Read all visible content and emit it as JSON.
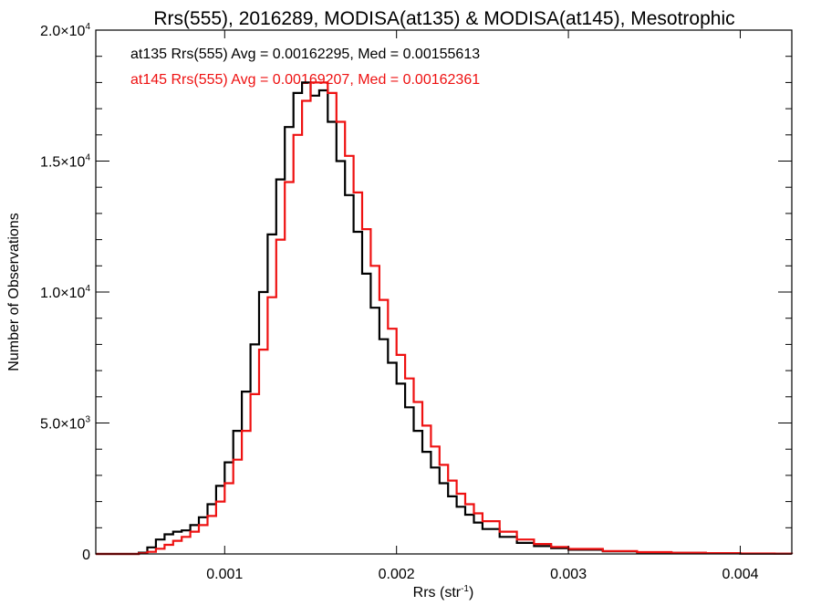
{
  "chart_data": {
    "type": "line",
    "title": "Rrs(555), 2016289, MODISA(at135) & MODISA(at145), Mesotrophic",
    "xlabel": "Rrs (str",
    "xlabel_sup": "-1",
    "xlabel_end": ")",
    "ylabel": "Number of Observations",
    "xlim": [
      0.00025,
      0.0043
    ],
    "ylim": [
      0,
      20000
    ],
    "x_ticks": [
      {
        "value": 0.001,
        "label": "0.001"
      },
      {
        "value": 0.002,
        "label": "0.002"
      },
      {
        "value": 0.003,
        "label": "0.003"
      },
      {
        "value": 0.004,
        "label": "0.004"
      }
    ],
    "y_ticks": [
      {
        "value": 0,
        "mant": "0",
        "exp": ""
      },
      {
        "value": 5000,
        "mant": "5.0×10",
        "exp": "3"
      },
      {
        "value": 10000,
        "mant": "1.0×10",
        "exp": "4"
      },
      {
        "value": 15000,
        "mant": "1.5×10",
        "exp": "4"
      },
      {
        "value": 20000,
        "mant": "2.0×10",
        "exp": "4"
      }
    ],
    "annotations": [
      {
        "text": "at135 Rrs(555) Avg = 0.00162295, Med = 0.00155613",
        "color": "#000000"
      },
      {
        "text": "at145 Rrs(555) Avg = 0.00169207, Med = 0.00162361",
        "color": "#ee1111"
      }
    ],
    "series": [
      {
        "color": "#000000",
        "x": [
          0.00025,
          0.0004,
          0.0005,
          0.00055,
          0.0006,
          0.00065,
          0.0007,
          0.00075,
          0.0008,
          0.00085,
          0.0009,
          0.00095,
          0.001,
          0.00105,
          0.0011,
          0.00115,
          0.0012,
          0.00125,
          0.0013,
          0.00135,
          0.0014,
          0.00145,
          0.0015,
          0.00155,
          0.0016,
          0.00165,
          0.0017,
          0.00175,
          0.0018,
          0.00185,
          0.0019,
          0.00195,
          0.002,
          0.00205,
          0.0021,
          0.00215,
          0.0022,
          0.00225,
          0.0023,
          0.00235,
          0.0024,
          0.00245,
          0.0025,
          0.0026,
          0.0027,
          0.0028,
          0.0029,
          0.003,
          0.0032,
          0.0034,
          0.0036,
          0.0038,
          0.004,
          0.0042,
          0.0043
        ],
        "y": [
          0,
          0,
          50,
          250,
          550,
          750,
          850,
          900,
          1100,
          1400,
          1900,
          2600,
          3500,
          4700,
          6200,
          8000,
          10000,
          12200,
          14300,
          16300,
          17600,
          18000,
          17500,
          17700,
          16500,
          15000,
          13700,
          12300,
          10700,
          9400,
          8200,
          7300,
          6500,
          5600,
          4700,
          3900,
          3300,
          2700,
          2200,
          1800,
          1500,
          1200,
          950,
          650,
          420,
          300,
          220,
          160,
          100,
          60,
          40,
          25,
          15,
          10,
          5
        ]
      },
      {
        "color": "#ee1111",
        "x": [
          0.00025,
          0.0004,
          0.0005,
          0.00055,
          0.0006,
          0.00065,
          0.0007,
          0.00075,
          0.0008,
          0.00085,
          0.0009,
          0.00095,
          0.001,
          0.00105,
          0.0011,
          0.00115,
          0.0012,
          0.00125,
          0.0013,
          0.00135,
          0.0014,
          0.00145,
          0.0015,
          0.00155,
          0.0016,
          0.00165,
          0.0017,
          0.00175,
          0.0018,
          0.00185,
          0.0019,
          0.00195,
          0.002,
          0.00205,
          0.0021,
          0.00215,
          0.0022,
          0.00225,
          0.0023,
          0.00235,
          0.0024,
          0.00245,
          0.0025,
          0.0026,
          0.0027,
          0.0028,
          0.0029,
          0.003,
          0.0032,
          0.0034,
          0.0036,
          0.0038,
          0.004,
          0.0042,
          0.0043
        ],
        "y": [
          0,
          0,
          20,
          80,
          200,
          350,
          500,
          650,
          850,
          1100,
          1450,
          2000,
          2700,
          3600,
          4700,
          6100,
          7800,
          9800,
          12000,
          14200,
          16000,
          17300,
          18000,
          18000,
          17600,
          16500,
          15200,
          13800,
          12400,
          11000,
          9700,
          8600,
          7600,
          6700,
          5800,
          4900,
          4100,
          3400,
          2800,
          2300,
          1900,
          1550,
          1250,
          850,
          550,
          380,
          270,
          190,
          110,
          70,
          45,
          30,
          18,
          10,
          5
        ]
      }
    ]
  }
}
